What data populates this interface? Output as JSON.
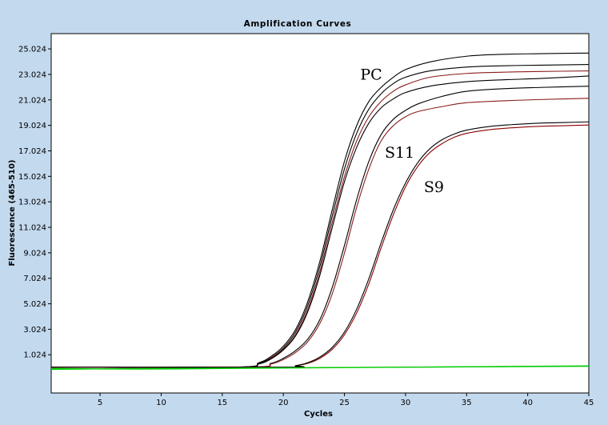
{
  "chart_data": {
    "type": "line",
    "title": "Amplification Curves",
    "xlabel": "Cycles",
    "ylabel": "Fluorescence (465-510)",
    "xlim": [
      1,
      45
    ],
    "ylim": [
      -1.976,
      26.224
    ],
    "xticks": [
      5,
      10,
      15,
      20,
      25,
      30,
      35,
      40,
      45
    ],
    "yticks": [
      1.024,
      3.024,
      5.024,
      7.024,
      9.024,
      11.024,
      13.024,
      15.024,
      17.024,
      19.024,
      21.024,
      23.024,
      25.024
    ],
    "ytick_labels": [
      "1.024",
      "3.024",
      "5.024",
      "7.024",
      "9.024",
      "11.024",
      "13.024",
      "15.024",
      "17.024",
      "19.024",
      "21.024",
      "23.024",
      "25.024"
    ],
    "grid": false,
    "series": [
      {
        "color": "#000000",
        "x": [
          1,
          16,
          18,
          19,
          20,
          21,
          22,
          23,
          24,
          25,
          26,
          27,
          28,
          29,
          30,
          32,
          35,
          38,
          41,
          45
        ],
        "y": [
          0.05,
          0.05,
          0.4,
          0.9,
          1.7,
          3.0,
          5.2,
          8.4,
          12.4,
          16.2,
          19.0,
          20.9,
          22.0,
          22.8,
          23.4,
          24.0,
          24.45,
          24.6,
          24.65,
          24.7
        ]
      },
      {
        "color": "#000000",
        "x": [
          1,
          16,
          18,
          19,
          20,
          21,
          22,
          23,
          24,
          25,
          26,
          27,
          28,
          29,
          30,
          32,
          35,
          38,
          41,
          45
        ],
        "y": [
          0.05,
          0.05,
          0.35,
          0.8,
          1.55,
          2.8,
          4.9,
          8.0,
          11.9,
          15.6,
          18.4,
          20.3,
          21.5,
          22.3,
          22.8,
          23.3,
          23.6,
          23.7,
          23.75,
          23.8
        ]
      },
      {
        "color": "#8a1c1c",
        "x": [
          1,
          16,
          18,
          19,
          20,
          21,
          22,
          23,
          24,
          25,
          26,
          27,
          28,
          29,
          30,
          32,
          35,
          38,
          41,
          45
        ],
        "y": [
          0.05,
          0.05,
          0.3,
          0.75,
          1.45,
          2.6,
          4.6,
          7.6,
          11.4,
          15.0,
          17.8,
          19.7,
          20.9,
          21.7,
          22.2,
          22.8,
          23.1,
          23.2,
          23.25,
          23.3
        ]
      },
      {
        "color": "#000000",
        "x": [
          1,
          16,
          18,
          19,
          20,
          21,
          22,
          23,
          24,
          25,
          26,
          27,
          28,
          29,
          30,
          32,
          35,
          38,
          41,
          45
        ],
        "y": [
          0.05,
          0.05,
          0.3,
          0.7,
          1.4,
          2.5,
          4.4,
          7.3,
          11.0,
          14.6,
          17.3,
          19.2,
          20.4,
          21.1,
          21.6,
          22.1,
          22.45,
          22.6,
          22.7,
          22.9
        ]
      },
      {
        "color": "#000000",
        "x": [
          1,
          17,
          19,
          20,
          21,
          22,
          23,
          24,
          25,
          26,
          27,
          28,
          29,
          30,
          31,
          33,
          35,
          38,
          41,
          45
        ],
        "y": [
          0.05,
          0.05,
          0.35,
          0.75,
          1.35,
          2.25,
          3.8,
          6.3,
          9.6,
          13.2,
          16.2,
          18.3,
          19.5,
          20.2,
          20.7,
          21.3,
          21.7,
          21.9,
          22.0,
          22.1
        ]
      },
      {
        "color": "#8a1c1c",
        "x": [
          1,
          17,
          19,
          20,
          21,
          22,
          23,
          24,
          25,
          26,
          27,
          28,
          29,
          30,
          31,
          33,
          35,
          38,
          41,
          45
        ],
        "y": [
          0.05,
          0.05,
          0.3,
          0.65,
          1.2,
          2.05,
          3.5,
          5.8,
          9.0,
          12.6,
          15.6,
          17.8,
          19.0,
          19.7,
          20.1,
          20.5,
          20.8,
          20.95,
          21.05,
          21.15
        ]
      },
      {
        "color": "#8b0000",
        "x": [
          1,
          20,
          21,
          22,
          23,
          24,
          25,
          26,
          27,
          28,
          29,
          30,
          31,
          32,
          33,
          34,
          35,
          37,
          39,
          41,
          43,
          45
        ],
        "y": [
          0.05,
          0.05,
          0.15,
          0.35,
          0.75,
          1.45,
          2.6,
          4.3,
          6.6,
          9.4,
          12.0,
          14.2,
          15.8,
          16.9,
          17.6,
          18.1,
          18.4,
          18.7,
          18.85,
          18.95,
          19.0,
          19.05
        ]
      },
      {
        "color": "#000000",
        "x": [
          1,
          20,
          21,
          22,
          23,
          24,
          25,
          26,
          27,
          28,
          29,
          30,
          31,
          32,
          33,
          34,
          35,
          37,
          39,
          41,
          43,
          45
        ],
        "y": [
          0.05,
          0.05,
          0.17,
          0.4,
          0.85,
          1.6,
          2.8,
          4.6,
          7.0,
          9.8,
          12.4,
          14.5,
          16.1,
          17.2,
          17.9,
          18.35,
          18.65,
          18.95,
          19.1,
          19.2,
          19.25,
          19.3
        ]
      },
      {
        "color": "#00cc00",
        "x": [
          1,
          8,
          15,
          22,
          30,
          38,
          45
        ],
        "y": [
          -0.05,
          -0.1,
          -0.05,
          0.0,
          0.05,
          0.1,
          0.15
        ]
      },
      {
        "color": "#00cc00",
        "x": [
          1,
          10,
          20,
          30,
          40,
          45
        ],
        "y": [
          -0.12,
          -0.05,
          0.0,
          0.05,
          0.1,
          0.12
        ]
      }
    ],
    "annotations": [
      {
        "text": "PC",
        "x": 26.3,
        "y": 22.6
      },
      {
        "text": "S11",
        "x": 28.3,
        "y": 16.5
      },
      {
        "text": "S9",
        "x": 31.5,
        "y": 13.8
      }
    ]
  }
}
